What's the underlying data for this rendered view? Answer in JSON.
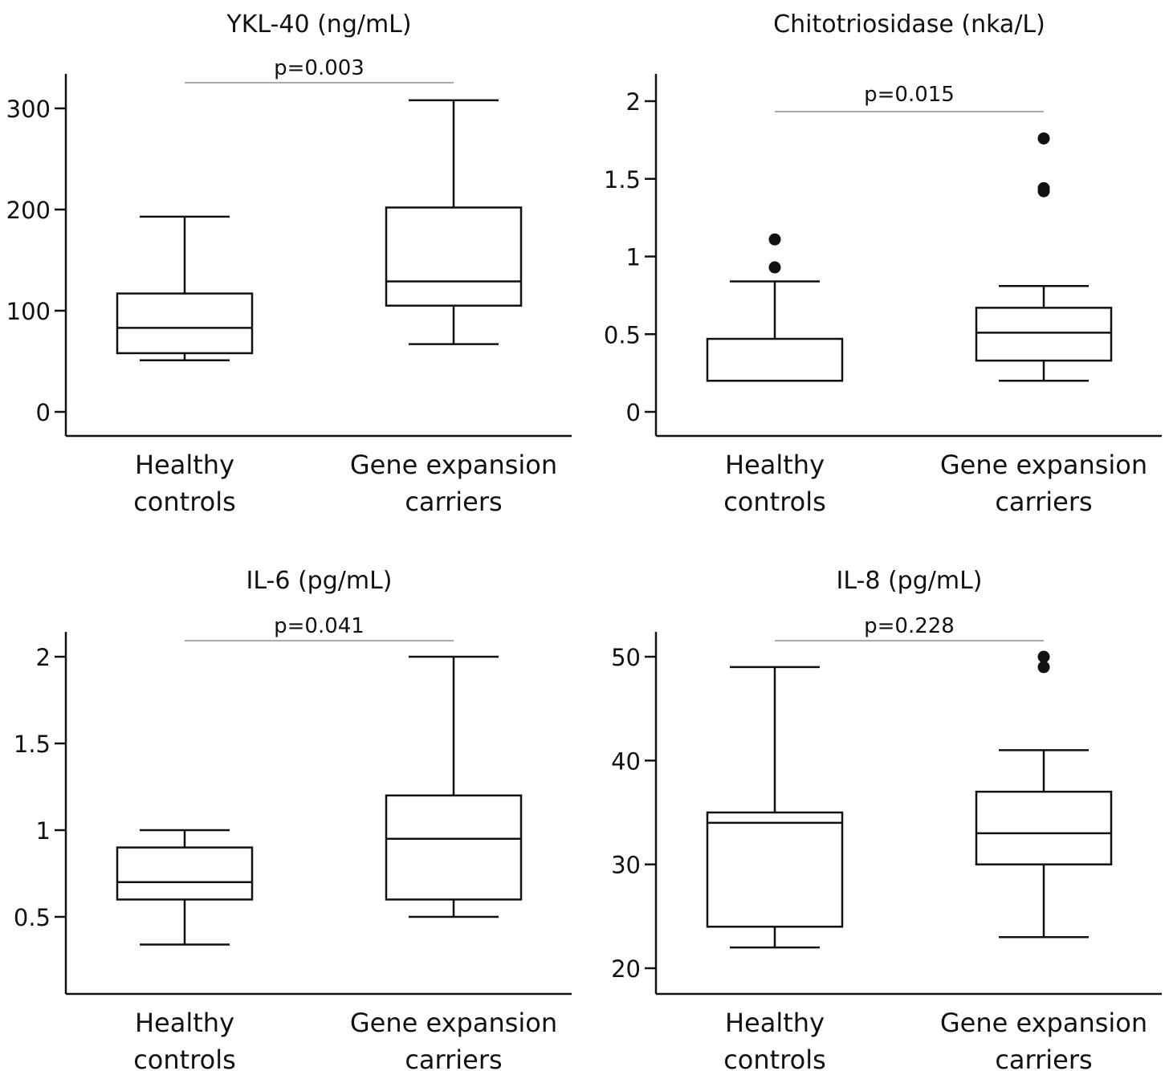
{
  "chart_data": [
    {
      "type": "box",
      "title": "YKL-40 (ng/mL)",
      "categories": [
        "Healthy|controls",
        "Gene expansion|carriers"
      ],
      "yticks": [
        "0",
        "100",
        "200",
        "300"
      ],
      "ytick_values": [
        0,
        100,
        200,
        300
      ],
      "p_value": "p=0.003",
      "boxes": [
        {
          "whisker_low": 51,
          "q1": 58,
          "median": 83,
          "q3": 117,
          "whisker_high": 193,
          "outliers": []
        },
        {
          "whisker_low": 67,
          "q1": 105,
          "median": 129,
          "q3": 202,
          "whisker_high": 308,
          "outliers": []
        }
      ]
    },
    {
      "type": "box",
      "title": "Chitotriosidase (nka/L)",
      "categories": [
        "Healthy|controls",
        "Gene expansion|carriers"
      ],
      "yticks": [
        "0",
        "0.5",
        "1",
        "1.5",
        "2"
      ],
      "ytick_values": [
        0,
        0.5,
        1,
        1.5,
        2
      ],
      "p_value": "p=0.015",
      "boxes": [
        {
          "whisker_low": 0.2,
          "q1": 0.2,
          "median": 0.2,
          "q3": 0.47,
          "whisker_high": 0.84,
          "outliers": [
            0.93,
            1.11
          ]
        },
        {
          "whisker_low": 0.2,
          "q1": 0.33,
          "median": 0.51,
          "q3": 0.67,
          "whisker_high": 0.81,
          "outliers": [
            1.42,
            1.44,
            1.76
          ]
        }
      ]
    },
    {
      "type": "box",
      "title": "IL-6 (pg/mL)",
      "categories": [
        "Healthy|controls",
        "Gene expansion|carriers"
      ],
      "yticks": [
        "0.5",
        "1",
        "1.5",
        "2"
      ],
      "ytick_values": [
        0.5,
        1,
        1.5,
        2
      ],
      "p_value": "p=0.041",
      "boxes": [
        {
          "whisker_low": 0.34,
          "q1": 0.6,
          "median": 0.7,
          "q3": 0.9,
          "whisker_high": 1.0,
          "outliers": []
        },
        {
          "whisker_low": 0.5,
          "q1": 0.6,
          "median": 0.95,
          "q3": 1.2,
          "whisker_high": 2.0,
          "outliers": []
        }
      ]
    },
    {
      "type": "box",
      "title": "IL-8 (pg/mL)",
      "categories": [
        "Healthy|controls",
        "Gene expansion|carriers"
      ],
      "yticks": [
        "20",
        "30",
        "40",
        "50"
      ],
      "ytick_values": [
        20,
        30,
        40,
        50
      ],
      "p_value": "p=0.228",
      "boxes": [
        {
          "whisker_low": 22,
          "q1": 24,
          "median": 34,
          "q3": 35,
          "whisker_high": 49,
          "outliers": []
        },
        {
          "whisker_low": 23,
          "q1": 30,
          "median": 33,
          "q3": 37,
          "whisker_high": 41,
          "outliers": [
            49,
            50
          ]
        }
      ]
    }
  ]
}
